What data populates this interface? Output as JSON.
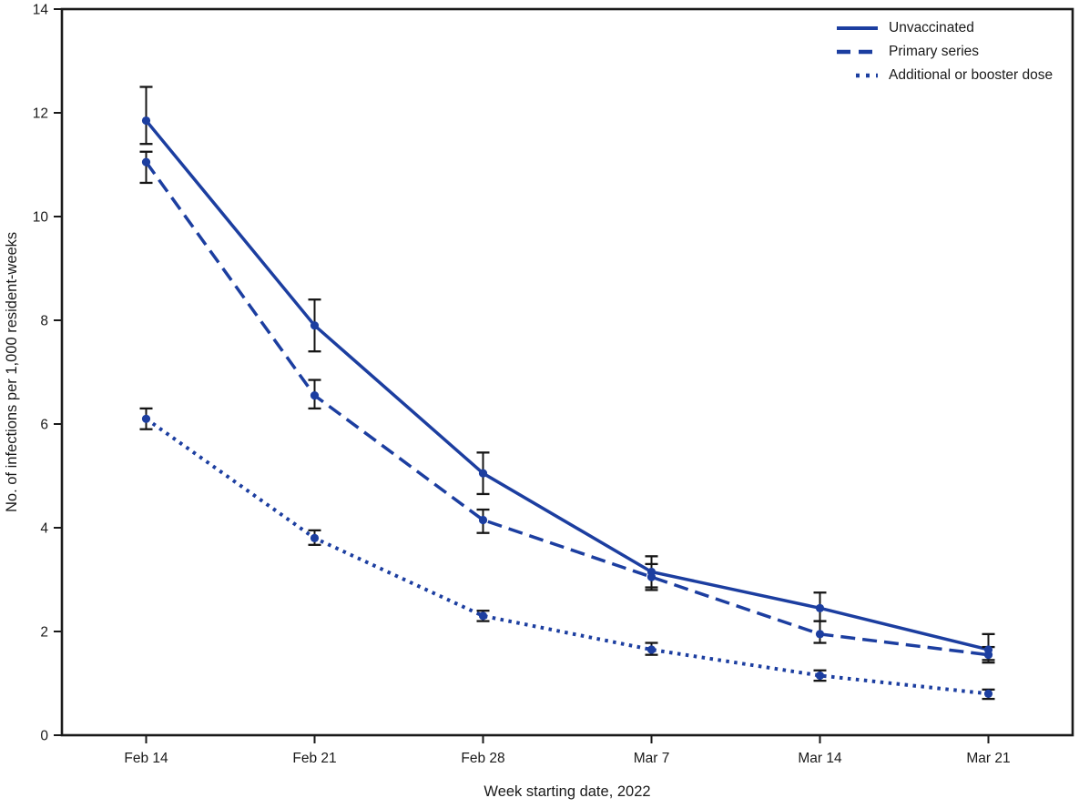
{
  "chart_data": {
    "type": "line",
    "title": "",
    "xlabel": "Week starting date, 2022",
    "ylabel": "No. of infections per 1,000 resident-weeks",
    "categories": [
      "Feb 14",
      "Feb 21",
      "Feb 28",
      "Mar 7",
      "Mar 14",
      "Mar 21"
    ],
    "ylim": [
      0,
      14
    ],
    "yticks": [
      0,
      2,
      4,
      6,
      8,
      10,
      12,
      14
    ],
    "grid": false,
    "legend_position": "top-right-inside",
    "colors": {
      "line": "#1c3ea0",
      "axis": "#1a1a1a",
      "error_bar": "#151515",
      "background": "#ffffff"
    },
    "series": [
      {
        "name": "Unvaccinated",
        "style": "solid",
        "values": [
          11.85,
          7.9,
          5.05,
          3.15,
          2.45,
          1.65
        ],
        "ci_low": [
          11.4,
          7.4,
          4.65,
          2.85,
          2.2,
          1.45
        ],
        "ci_high": [
          12.5,
          8.4,
          5.45,
          3.45,
          2.75,
          1.95
        ]
      },
      {
        "name": "Primary series",
        "style": "dashed",
        "values": [
          11.05,
          6.55,
          4.15,
          3.05,
          1.95,
          1.55
        ],
        "ci_low": [
          10.65,
          6.3,
          3.9,
          2.8,
          1.78,
          1.4
        ],
        "ci_high": [
          11.25,
          6.85,
          4.35,
          3.3,
          2.2,
          1.7
        ]
      },
      {
        "name": "Additional or booster dose",
        "style": "dotted",
        "values": [
          6.1,
          3.8,
          2.3,
          1.65,
          1.15,
          0.8
        ],
        "ci_low": [
          5.9,
          3.67,
          2.2,
          1.55,
          1.05,
          0.7
        ],
        "ci_high": [
          6.3,
          3.95,
          2.4,
          1.78,
          1.25,
          0.88
        ]
      }
    ]
  }
}
